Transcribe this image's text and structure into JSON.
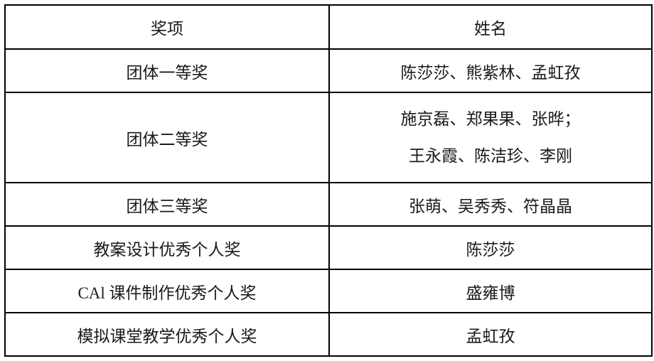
{
  "document": {
    "background_color": "#ffffff",
    "border_color": "#000000",
    "text_color": "#1a1a1a"
  },
  "table": {
    "columns": [
      "奖项",
      "姓名"
    ],
    "rows": [
      {
        "award": "团体一等奖",
        "names": [
          "陈莎莎、熊紫林、孟虹孜"
        ]
      },
      {
        "award": "团体二等奖",
        "names": [
          "施京磊、郑果果、张晔；",
          "王永霞、陈洁珍、李刚"
        ]
      },
      {
        "award": "团体三等奖",
        "names": [
          "张萌、吴秀秀、符晶晶"
        ]
      },
      {
        "award": "教案设计优秀个人奖",
        "names": [
          "陈莎莎"
        ]
      },
      {
        "award": "CAl 课件制作优秀个人奖",
        "names": [
          "盛雍博"
        ]
      },
      {
        "award": "模拟课堂教学优秀个人奖",
        "names": [
          "孟虹孜"
        ]
      }
    ]
  }
}
